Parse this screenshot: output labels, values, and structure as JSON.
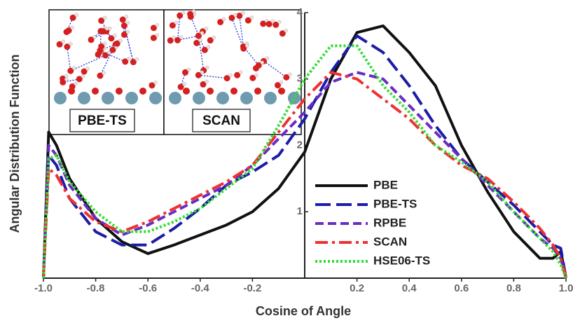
{
  "chart_data": {
    "type": "line",
    "x_label": "Cosine of Angle",
    "y_label": "Angular Distribution Function",
    "annotations": [
      "PBE-TS",
      "SCAN"
    ],
    "x": [
      -1,
      -0.98,
      -0.95,
      -0.9,
      -0.8,
      -0.7,
      -0.6,
      -0.5,
      -0.4,
      -0.3,
      -0.2,
      -0.1,
      0,
      0.1,
      0.2,
      0.3,
      0.4,
      0.5,
      0.6,
      0.7,
      0.8,
      0.9,
      0.95,
      0.98,
      1
    ],
    "series": [
      {
        "name": "PBE",
        "color": "#111111",
        "line_style": "solid",
        "values": [
          0,
          2.2,
          2.0,
          1.5,
          0.9,
          0.55,
          0.37,
          0.5,
          0.65,
          0.8,
          1.0,
          1.35,
          1.9,
          3.0,
          3.7,
          3.8,
          3.4,
          2.9,
          2.0,
          1.3,
          0.7,
          0.3,
          0.3,
          0.4,
          0
        ]
      },
      {
        "name": "PBE-TS",
        "color": "#1c1ca8",
        "line_style": "longdash",
        "values": [
          0,
          1.85,
          1.7,
          1.2,
          0.7,
          0.5,
          0.5,
          0.75,
          1.05,
          1.4,
          1.6,
          1.85,
          2.4,
          3.1,
          3.65,
          3.4,
          2.9,
          2.3,
          1.8,
          1.45,
          1.1,
          0.7,
          0.5,
          0.45,
          0
        ]
      },
      {
        "name": "RPBE",
        "color": "#6a2cc4",
        "line_style": "dashed",
        "values": [
          0,
          2.0,
          1.85,
          1.4,
          0.9,
          0.65,
          0.8,
          1.0,
          1.2,
          1.4,
          1.7,
          2.1,
          2.5,
          2.95,
          3.1,
          3.0,
          2.6,
          2.2,
          1.8,
          1.4,
          1.0,
          0.6,
          0.45,
          0.3,
          0
        ]
      },
      {
        "name": "SCAN",
        "color": "#f03030",
        "line_style": "dashdot",
        "values": [
          0,
          1.65,
          1.55,
          1.2,
          0.85,
          0.7,
          0.85,
          1.05,
          1.25,
          1.45,
          1.7,
          2.2,
          2.7,
          3.1,
          3.0,
          2.7,
          2.4,
          2.0,
          1.7,
          1.5,
          1.15,
          0.75,
          0.5,
          0.3,
          0
        ]
      },
      {
        "name": "HSE06-TS",
        "color": "#33dd33",
        "line_style": "dotted",
        "values": [
          0,
          1.8,
          1.85,
          1.45,
          1.0,
          0.7,
          0.7,
          0.85,
          1.05,
          1.35,
          1.65,
          2.3,
          3.0,
          3.5,
          3.5,
          2.9,
          2.5,
          2.0,
          1.75,
          1.45,
          1.0,
          0.6,
          0.4,
          0.2,
          0
        ]
      }
    ],
    "xlim": [
      -1,
      1
    ],
    "ylim": [
      0,
      4
    ],
    "xticks": [
      {
        "value": -1,
        "label": "-1.0"
      },
      {
        "value": -0.8,
        "label": "-0.8"
      },
      {
        "value": -0.6,
        "label": "-0.6"
      },
      {
        "value": -0.4,
        "label": "-0.4"
      },
      {
        "value": -0.2,
        "label": "-0.2"
      },
      0.2,
      0.4,
      0.6,
      0.8,
      {
        "value": 1,
        "label": "1.0"
      }
    ],
    "yticks": [
      1,
      2,
      3,
      4
    ],
    "legend": "lower right"
  }
}
